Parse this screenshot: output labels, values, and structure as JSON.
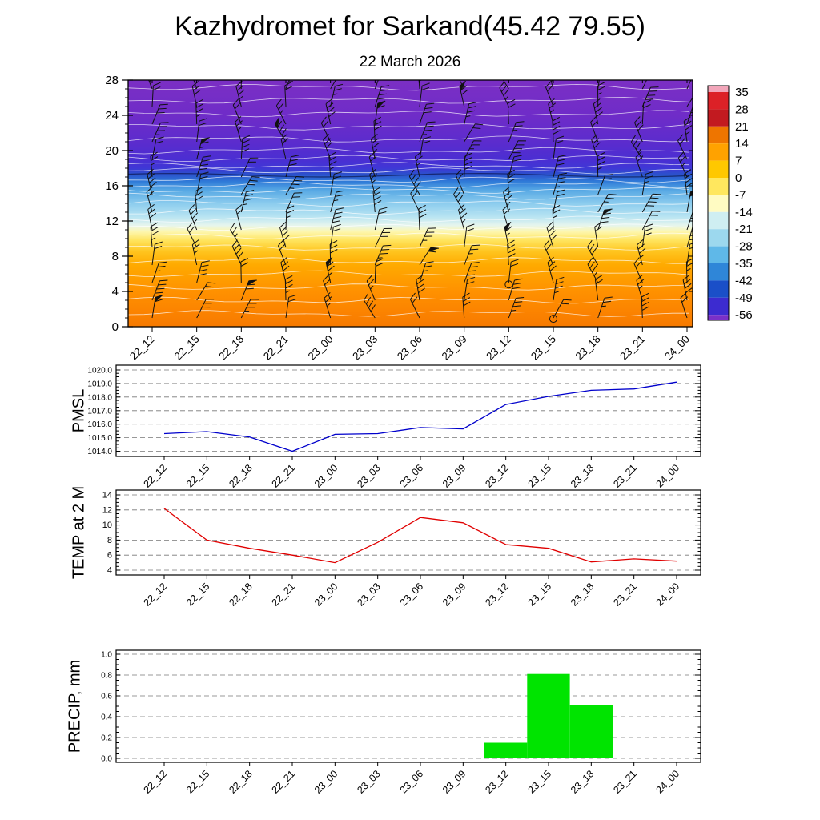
{
  "header": {
    "title": "Kazhydromet for Sarkand(45.42 79.55)",
    "subtitle": "22 March 2026"
  },
  "time_labels": [
    "22_12",
    "22_15",
    "22_18",
    "22_21",
    "23_00",
    "23_03",
    "23_06",
    "23_09",
    "23_12",
    "23_15",
    "23_18",
    "23_21",
    "24_00"
  ],
  "chart_data": [
    {
      "type": "heatmap",
      "name": "temperature-height-cross-section",
      "x": [
        "22_12",
        "22_15",
        "22_18",
        "22_21",
        "23_00",
        "23_03",
        "23_06",
        "23_09",
        "23_12",
        "23_15",
        "23_18",
        "23_21",
        "24_00"
      ],
      "ylim": [
        0,
        28
      ],
      "yticks": [
        0,
        4,
        8,
        12,
        16,
        20,
        24,
        28
      ],
      "ytick_labels": [
        "0",
        "4",
        "8",
        "12",
        "16",
        "20",
        "24",
        "28"
      ],
      "overlay": "wind-barbs",
      "colorbar_labels": [
        "35",
        "28",
        "21",
        "14",
        "7",
        "0",
        "-7",
        "-14",
        "-21",
        "-28",
        "-35",
        "-42",
        "-49",
        "-56"
      ],
      "colorbar_colors": [
        "#f2a6ba",
        "#dc2127",
        "#c21a20",
        "#ee7500",
        "#ffa200",
        "#ffc800",
        "#ffe75e",
        "#fffbc2",
        "#cfeef2",
        "#9cd8ee",
        "#5fb8e8",
        "#2f86d8",
        "#1a4fc8",
        "#3c2bd0",
        "#7a30c8"
      ],
      "field_gradient": [
        {
          "offset": 0.0,
          "color": "#7b2fc4"
        },
        {
          "offset": 0.143,
          "color": "#6f2cc8"
        },
        {
          "offset": 0.25,
          "color": "#5c2ccd"
        },
        {
          "offset": 0.321,
          "color": "#4b2ed2"
        },
        {
          "offset": 0.357,
          "color": "#3f37d6"
        },
        {
          "offset": 0.382,
          "color": "#2b51cc"
        },
        {
          "offset": 0.411,
          "color": "#2f7ad8"
        },
        {
          "offset": 0.446,
          "color": "#57a8e4"
        },
        {
          "offset": 0.5,
          "color": "#8cccee"
        },
        {
          "offset": 0.554,
          "color": "#b8e4f2"
        },
        {
          "offset": 0.589,
          "color": "#e6f5ee"
        },
        {
          "offset": 0.614,
          "color": "#fdf7b0"
        },
        {
          "offset": 0.65,
          "color": "#ffe45e"
        },
        {
          "offset": 0.696,
          "color": "#ffc41e"
        },
        {
          "offset": 0.75,
          "color": "#ffaa00"
        },
        {
          "offset": 0.857,
          "color": "#ff9100"
        },
        {
          "offset": 0.946,
          "color": "#fb8200"
        },
        {
          "offset": 1.0,
          "color": "#f67a00"
        }
      ],
      "calm_markers": [
        {
          "t": 8,
          "alt": 4.8
        },
        {
          "t": 9,
          "alt": 0.9
        }
      ],
      "barb_color": "#111111"
    },
    {
      "type": "line",
      "name": "pmsl",
      "ylabel": "PMSL",
      "color": "#0000cc",
      "x": [
        "22_12",
        "22_15",
        "22_18",
        "22_21",
        "23_00",
        "23_03",
        "23_06",
        "23_09",
        "23_12",
        "23_15",
        "23_18",
        "23_21",
        "24_00"
      ],
      "ylim": [
        1014.0,
        1020.0
      ],
      "yticks": [
        1014,
        1015,
        1016,
        1017,
        1018,
        1019,
        1020
      ],
      "ytick_labels": [
        "1014.0",
        "1015.0",
        "1016.0",
        "1017.0",
        "1018.0",
        "1019.0",
        "1020.0"
      ],
      "values": [
        1015.3,
        1015.45,
        1015.05,
        1014.0,
        1015.25,
        1015.3,
        1015.75,
        1015.65,
        1017.45,
        1018.05,
        1018.5,
        1018.6,
        1019.1
      ]
    },
    {
      "type": "line",
      "name": "temp-2m",
      "ylabel": "TEMP at 2 M",
      "color": "#e00000",
      "x": [
        "22_12",
        "22_15",
        "22_18",
        "22_21",
        "23_00",
        "23_03",
        "23_06",
        "23_09",
        "23_12",
        "23_15",
        "23_18",
        "23_21",
        "24_00"
      ],
      "ylim": [
        4,
        14
      ],
      "yticks": [
        4,
        6,
        8,
        10,
        12,
        14
      ],
      "ytick_labels": [
        "4",
        "6",
        "8",
        "10",
        "12",
        "14"
      ],
      "values": [
        12.2,
        8.0,
        6.9,
        6.0,
        5.0,
        7.7,
        11.0,
        10.3,
        7.4,
        6.9,
        5.1,
        5.5,
        5.2
      ]
    },
    {
      "type": "bar",
      "name": "precip",
      "ylabel": "PRECIP, mm",
      "color": "#00e400",
      "x": [
        "22_12",
        "22_15",
        "22_18",
        "22_21",
        "23_00",
        "23_03",
        "23_06",
        "23_09",
        "23_12",
        "23_15",
        "23_18",
        "23_21",
        "24_00"
      ],
      "ylim": [
        0.0,
        1.0
      ],
      "yticks": [
        0.0,
        0.2,
        0.4,
        0.6,
        0.8,
        1.0
      ],
      "ytick_labels": [
        "0.0",
        "0.2",
        "0.4",
        "0.6",
        "0.8",
        "1.0"
      ],
      "values": [
        0,
        0,
        0,
        0,
        0,
        0,
        0,
        0,
        0.15,
        0.81,
        0.51,
        0,
        0
      ]
    }
  ]
}
